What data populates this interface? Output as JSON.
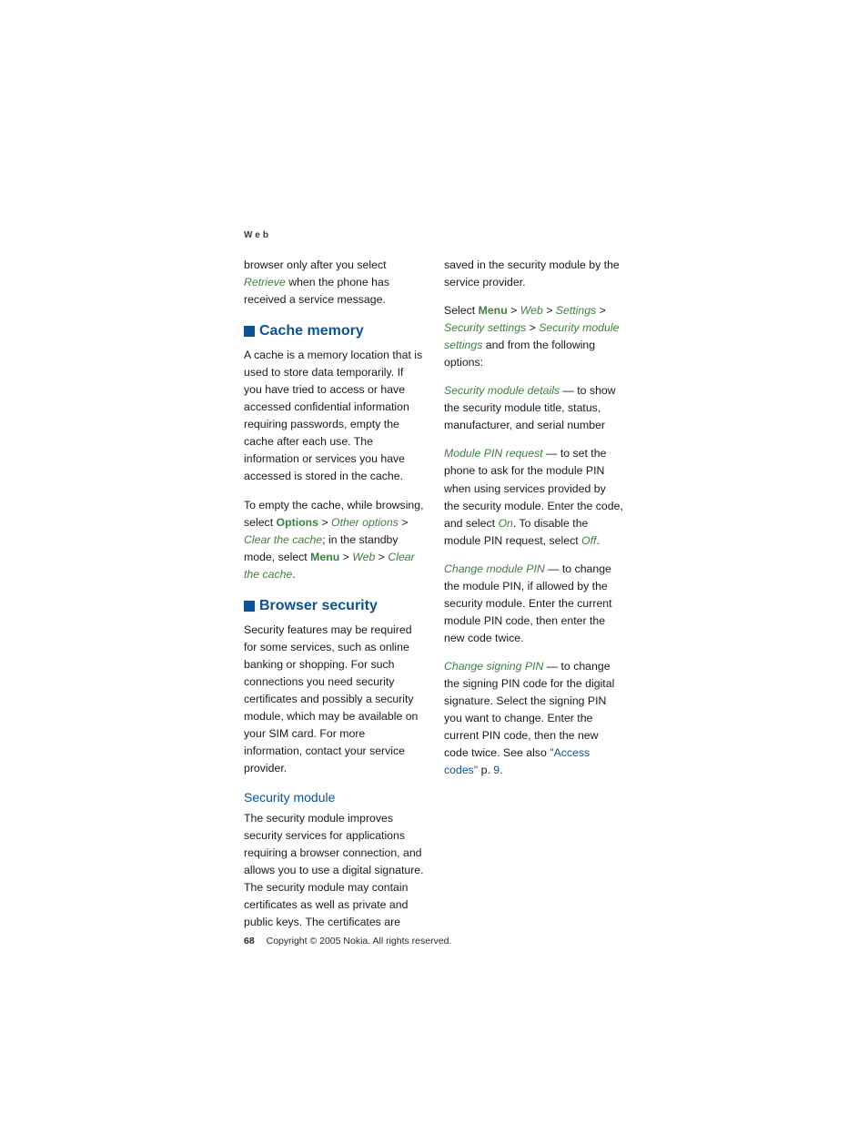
{
  "header": {
    "label": "Web"
  },
  "colors": {
    "heading_blue": "#0b5394",
    "green": "#3f7f3f",
    "body_text": "#1a1a1a",
    "background": "#ffffff"
  },
  "typography": {
    "body_fontsize_pt": 9,
    "h2_fontsize_pt": 12,
    "h3_fontsize_pt": 10.5,
    "header_label_fontsize_pt": 7.5,
    "footer_fontsize_pt": 8
  },
  "left": {
    "intro": {
      "pre": "browser only after you select ",
      "retrieve": "Retrieve",
      "post": " when the phone has received a service message."
    },
    "cache": {
      "heading": "Cache memory",
      "p1": "A cache is a memory location that is used to store data temporarily. If you have tried to access or have accessed confidential information requiring passwords, empty the cache after each use. The information or services you have accessed is stored in the cache.",
      "p2": {
        "a": "To empty the cache, while browsing, select ",
        "options": "Options",
        "gt1": " > ",
        "other_options": "Other options",
        "gt2": " > ",
        "clear_cache1": "Clear the cache",
        "b": "; in the standby mode, select ",
        "menu": "Menu",
        "gt3": " > ",
        "web": "Web",
        "gt4": " > ",
        "clear_cache2": "Clear the cache",
        "c": "."
      }
    },
    "browser_sec": {
      "heading": "Browser security",
      "p1": "Security features may be required for some services, such as online banking or shopping. For such connections you need security certificates and possibly a security module, which may be available on your SIM card. For more information, contact your service provider."
    },
    "sec_module": {
      "heading": "Security module",
      "p1": "The security module improves security services for applications requiring a browser connection, and allows you to use a digital signature. The security module may contain certificates as well as private and public keys. The certificates are"
    }
  },
  "right": {
    "cont": "saved in the security module by the service provider.",
    "nav": {
      "a": "Select ",
      "menu": "Menu",
      "gt1": " > ",
      "web": "Web",
      "gt2": " > ",
      "settings": "Settings",
      "gt3": " > ",
      "security_settings": "Security settings",
      "gt4": " > ",
      "sec_mod_settings": "Security module settings",
      "b": " and from the following options:"
    },
    "opt1": {
      "label": "Security module details",
      "text": " — to show the security module title, status, manufacturer, and serial number"
    },
    "opt2": {
      "label": "Module PIN request",
      "a": " — to set the phone to ask for the module PIN when using services provided by the security module. Enter the code, and select ",
      "on": "On",
      "b": ". To disable the module PIN request, select ",
      "off": "Off",
      "c": "."
    },
    "opt3": {
      "label": "Change module PIN",
      "text": " — to change the module PIN, if allowed by the security module. Enter the current module PIN code, then enter the new code twice."
    },
    "opt4": {
      "label": "Change signing PIN",
      "a": " — to change the signing PIN code for the digital signature. Select the signing PIN you want to change. Enter the current PIN code, then the new code twice. See also ",
      "link": "\"Access codes\"",
      "b": " p. ",
      "page": "9",
      "c": "."
    }
  },
  "footer": {
    "page_number": "68",
    "copyright": "Copyright © 2005 Nokia. All rights reserved."
  }
}
